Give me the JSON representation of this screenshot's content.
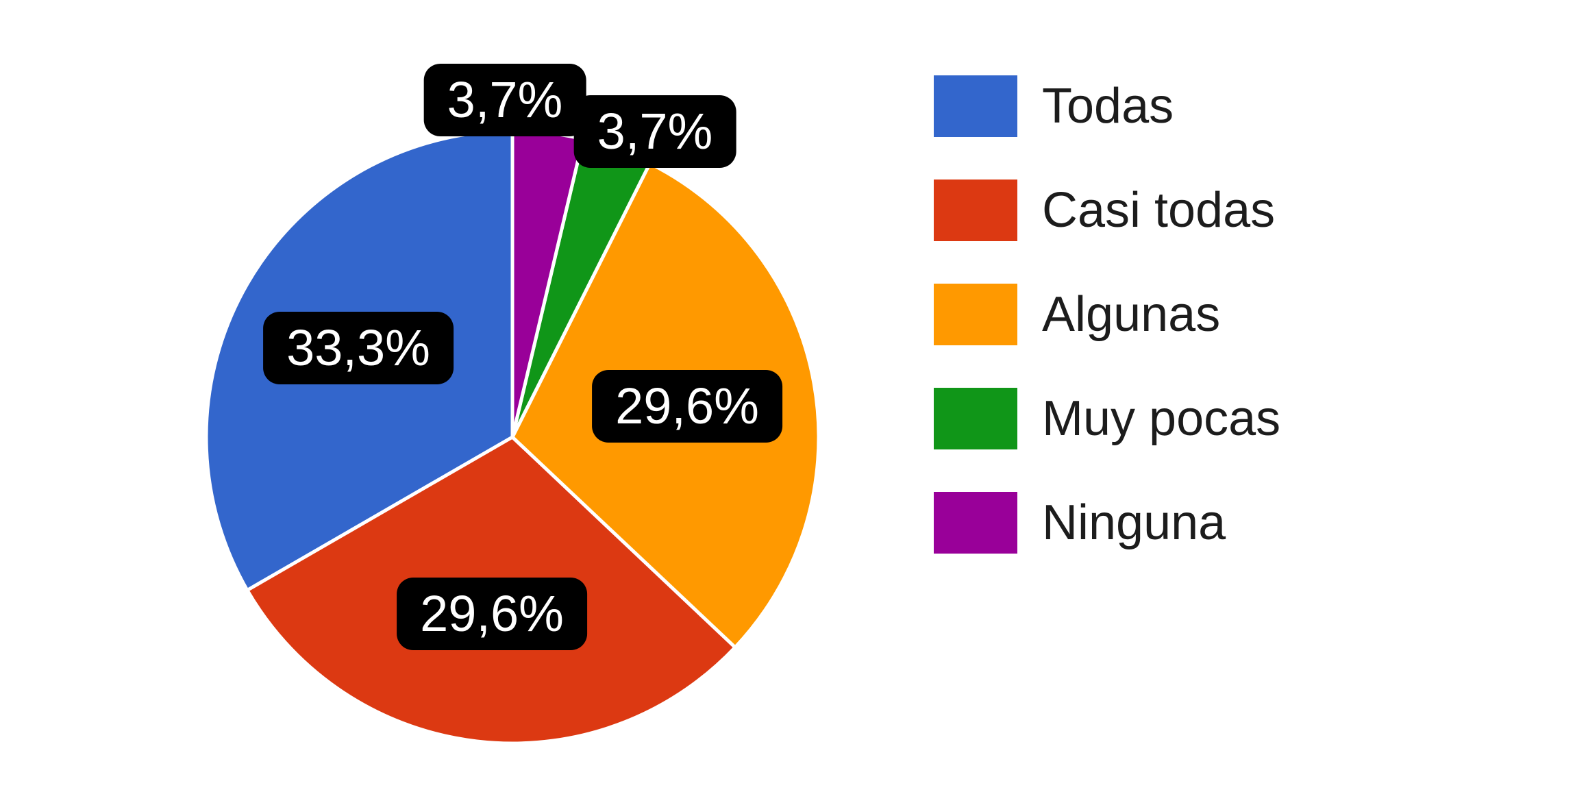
{
  "chart_data": {
    "type": "pie",
    "categories": [
      "Todas",
      "Casi todas",
      "Algunas",
      "Muy pocas",
      "Ninguna"
    ],
    "values": [
      33.3,
      29.6,
      29.6,
      3.7,
      3.7
    ],
    "labels": [
      "33,3%",
      "29,6%",
      "29,6%",
      "3,7%",
      "3,7%"
    ],
    "colors": [
      "#3366CC",
      "#DC3912",
      "#FF9900",
      "#109618",
      "#990099"
    ],
    "label_placement": [
      "inside",
      "inside",
      "inside",
      "outside",
      "outside"
    ],
    "legend_position": "right",
    "legend_entries": [
      "Todas",
      "Casi todas",
      "Algunas",
      "Muy pocas",
      "Ninguna"
    ],
    "background": "#ffffff",
    "label_badge": {
      "bg": "#000000",
      "text_color": "#ffffff"
    },
    "rotation": "first slice starts at 12 o'clock, drawn counter-clockwise"
  }
}
